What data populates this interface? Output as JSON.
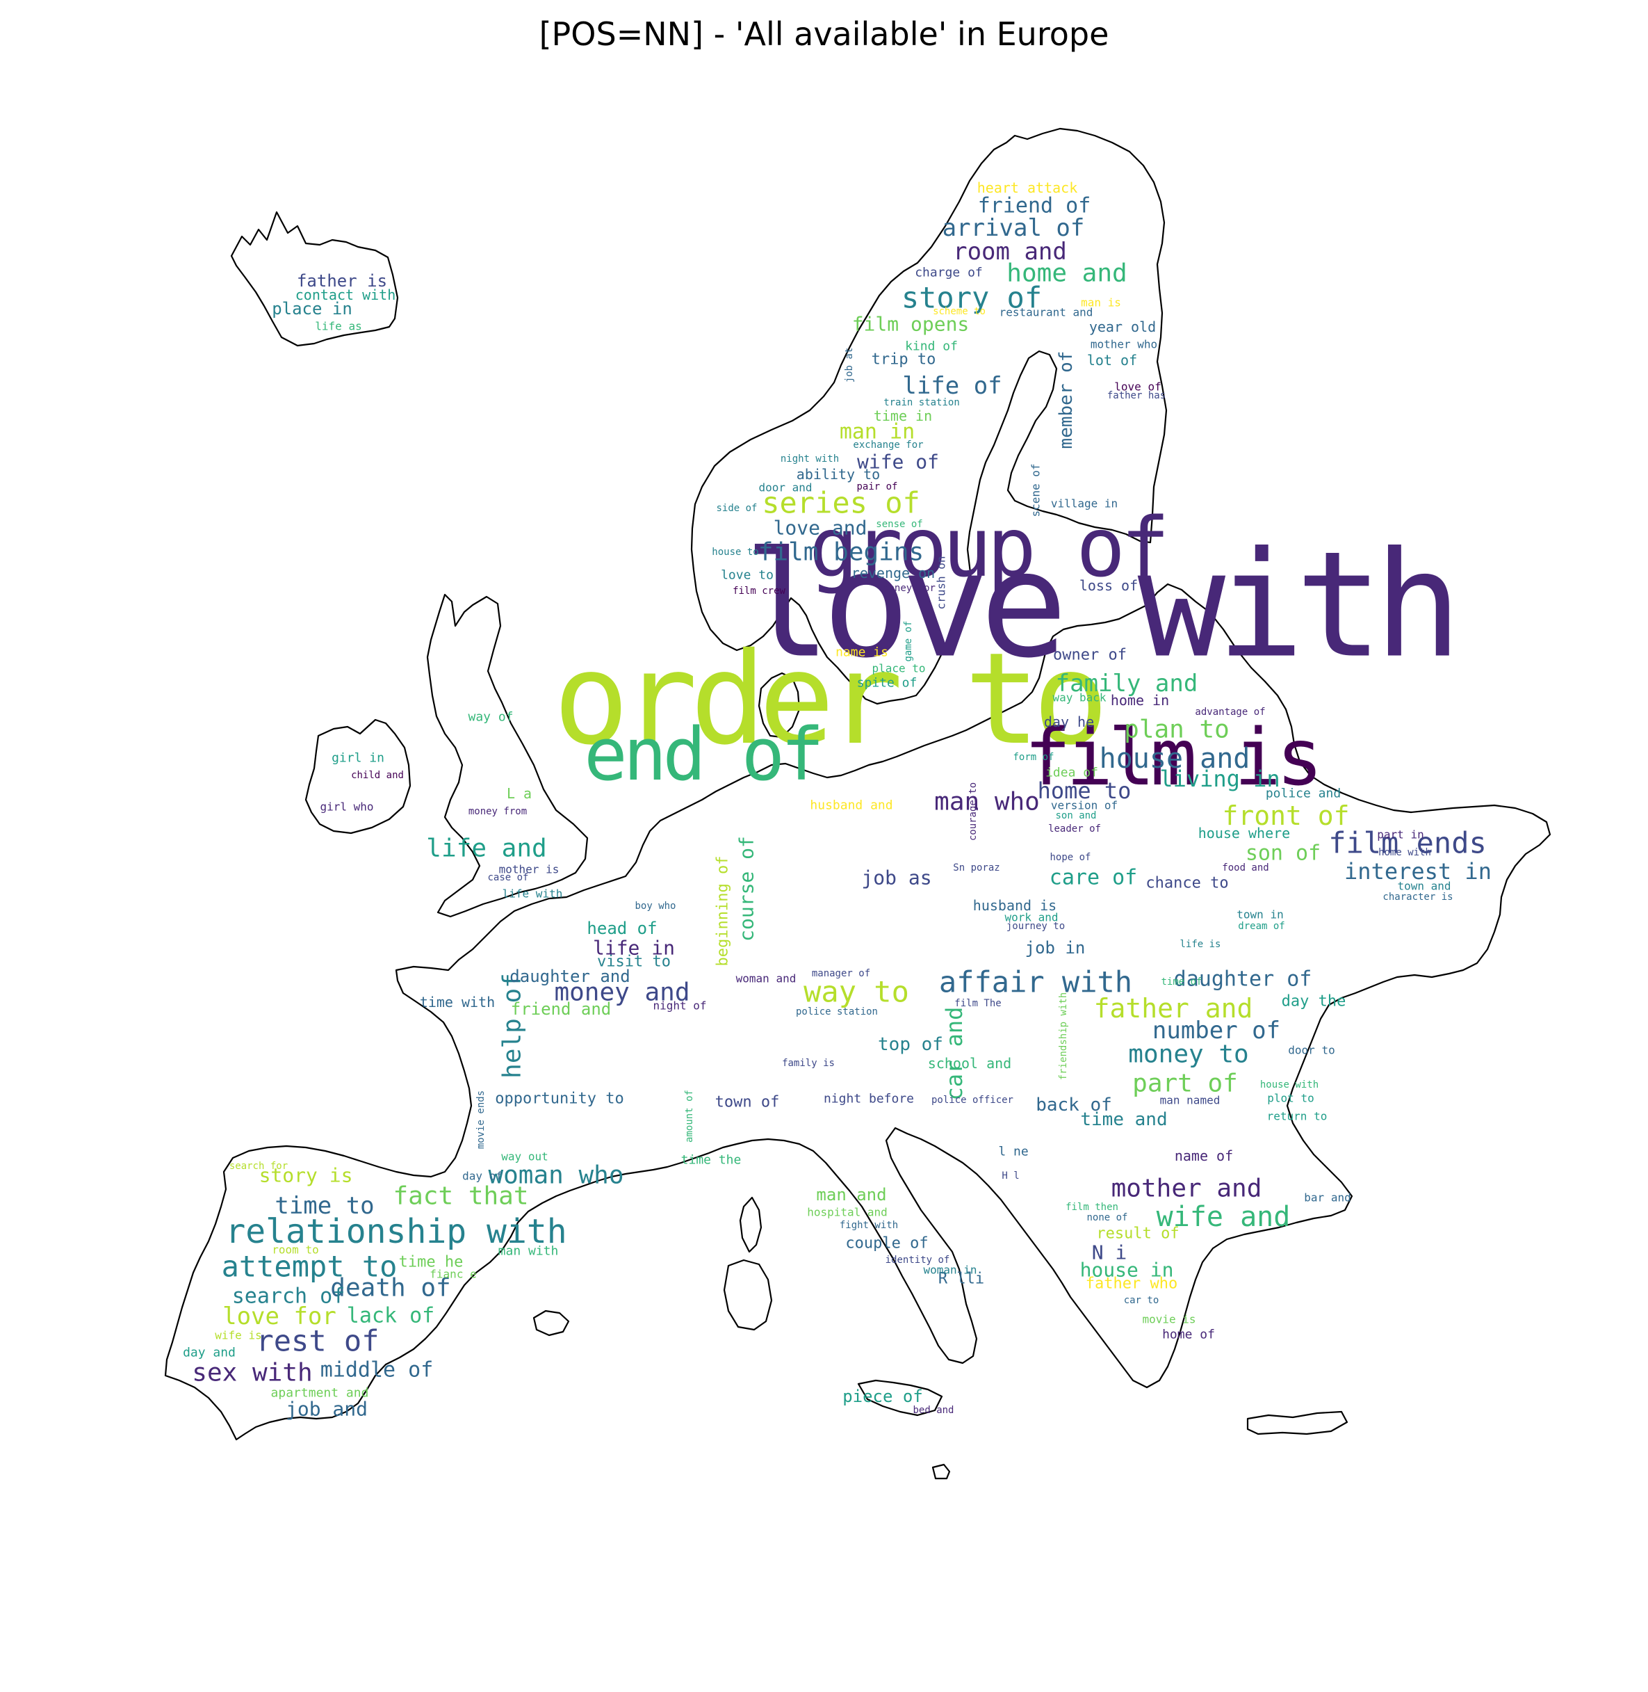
{
  "title": "[POS=NN] - 'All available' in Europe",
  "palette": [
    "#440154",
    "#482878",
    "#3e4989",
    "#31688e",
    "#26828e",
    "#1f9e89",
    "#35b779",
    "#6ece58",
    "#b5de2b",
    "#fde725"
  ],
  "words": [
    [
      "love with",
      1580,
      870,
      210,
      1,
      "l"
    ],
    [
      "order to",
      1190,
      1005,
      182,
      8,
      "l"
    ],
    [
      "group of",
      1420,
      787,
      118,
      1,
      "l"
    ],
    [
      "film is",
      1685,
      1090,
      112,
      0,
      "l"
    ],
    [
      "end of",
      1010,
      1085,
      104,
      6,
      "l"
    ],
    [
      "relationship with",
      570,
      1771,
      48,
      4
    ],
    [
      "affair with",
      1490,
      1412,
      42,
      3
    ],
    [
      "series of",
      1210,
      723,
      42,
      8
    ],
    [
      "film ends",
      2025,
      1212,
      42,
      2
    ],
    [
      "attempt to",
      445,
      1821,
      42,
      4
    ],
    [
      "way to",
      1232,
      1426,
      42,
      8
    ],
    [
      "house and",
      1690,
      1091,
      40,
      3
    ],
    [
      "rest of",
      457,
      1928,
      42,
      2
    ],
    [
      "story of",
      1398,
      428,
      42,
      4
    ],
    [
      "front of",
      1850,
      1173,
      38,
      8
    ],
    [
      "money and",
      895,
      1427,
      36,
      2
    ],
    [
      "life and",
      700,
      1220,
      36,
      5
    ],
    [
      "woman who",
      800,
      1690,
      36,
      4
    ],
    [
      "sex with",
      363,
      1974,
      36,
      1
    ],
    [
      "man who",
      1420,
      1153,
      36,
      1
    ],
    [
      "wife and",
      1760,
      1750,
      40,
      6
    ],
    [
      "fact that",
      663,
      1720,
      36,
      7
    ],
    [
      "film begins",
      1210,
      794,
      36,
      3
    ],
    [
      "plan to",
      1693,
      1049,
      36,
      7
    ],
    [
      "father and",
      1688,
      1450,
      38,
      8
    ],
    [
      "mother and",
      1707,
      1709,
      36,
      1
    ],
    [
      "death of",
      562,
      1852,
      36,
      3
    ],
    [
      "family and",
      1621,
      983,
      34,
      6
    ],
    [
      "room and",
      1453,
      362,
      34,
      1
    ],
    [
      "home and",
      1535,
      393,
      36,
      6
    ],
    [
      "number of",
      1750,
      1482,
      34,
      3
    ],
    [
      "money to",
      1710,
      1516,
      36,
      4
    ],
    [
      "part of",
      1705,
      1558,
      36,
      7
    ],
    [
      "living in",
      1755,
      1120,
      32,
      5
    ],
    [
      "interest in",
      2040,
      1253,
      32,
      3
    ],
    [
      "daughter of",
      1788,
      1408,
      30,
      3
    ],
    [
      "home to",
      1560,
      1137,
      32,
      2
    ],
    [
      "arrival of",
      1458,
      328,
      34,
      3
    ],
    [
      "friend of",
      1488,
      296,
      30,
      3
    ],
    [
      "life of",
      1370,
      555,
      34,
      3
    ],
    [
      "life in",
      912,
      1363,
      28,
      1
    ],
    [
      "time to",
      467,
      1734,
      34,
      3
    ],
    [
      "love for",
      402,
      1893,
      34,
      8
    ],
    [
      "job and",
      470,
      2026,
      28,
      3
    ],
    [
      "middle of",
      542,
      1970,
      30,
      3
    ],
    [
      "search of",
      415,
      1864,
      30,
      4
    ],
    [
      "lack of",
      562,
      1892,
      30,
      6
    ],
    [
      "care of",
      1573,
      1262,
      30,
      5
    ],
    [
      "son of",
      1846,
      1227,
      30,
      7
    ],
    [
      "head of",
      895,
      1335,
      24,
      5
    ],
    [
      "course of",
      1074,
      1278,
      28,
      6,
      "v"
    ],
    [
      "help of",
      737,
      1475,
      36,
      4,
      "v"
    ],
    [
      "car and",
      1373,
      1515,
      32,
      6,
      "v"
    ],
    [
      "beginning of",
      1040,
      1310,
      22,
      8,
      "v"
    ],
    [
      "member of",
      1534,
      575,
      26,
      3,
      "v"
    ],
    [
      "job as",
      1290,
      1262,
      28,
      2
    ],
    [
      "man in",
      1262,
      621,
      30,
      8
    ],
    [
      "wife of",
      1292,
      664,
      28,
      2
    ],
    [
      "love and",
      1180,
      759,
      28,
      3
    ],
    [
      "film opens",
      1310,
      466,
      28,
      7
    ],
    [
      "back of",
      1545,
      1589,
      26,
      3
    ],
    [
      "time and",
      1617,
      1610,
      26,
      4
    ],
    [
      "top of",
      1310,
      1502,
      26,
      4
    ],
    [
      "friend and",
      807,
      1451,
      24,
      7
    ],
    [
      "daughter and",
      820,
      1404,
      24,
      3
    ],
    [
      "opportunity to",
      805,
      1580,
      22,
      3
    ],
    [
      "town of",
      1075,
      1585,
      22,
      2
    ],
    [
      "visit to",
      912,
      1383,
      22,
      4
    ],
    [
      "story is",
      440,
      1690,
      28,
      8
    ],
    [
      "man and",
      1225,
      1718,
      24,
      7
    ],
    [
      "couple of",
      1276,
      1788,
      22,
      3
    ],
    [
      "N i",
      1596,
      1801,
      28,
      2
    ],
    [
      "house in",
      1621,
      1826,
      28,
      6
    ],
    [
      "father who",
      1628,
      1846,
      22,
      9
    ],
    [
      "result of",
      1637,
      1774,
      22,
      8
    ],
    [
      "piece of",
      1270,
      2008,
      24,
      5
    ],
    [
      "R lli",
      1383,
      1839,
      22,
      3
    ],
    [
      "time with",
      658,
      1441,
      20,
      3
    ],
    [
      "school and",
      1395,
      1529,
      20,
      6
    ],
    [
      "job in",
      1518,
      1363,
      24,
      3
    ],
    [
      "husband is",
      1460,
      1302,
      20,
      3
    ],
    [
      "chance to",
      1708,
      1270,
      22,
      2
    ],
    [
      "house where",
      1790,
      1198,
      20,
      5
    ],
    [
      "police and",
      1875,
      1141,
      18,
      4
    ],
    [
      "day the",
      1890,
      1440,
      22,
      5
    ],
    [
      "idea of",
      1542,
      1111,
      18,
      7
    ],
    [
      "owner of",
      1568,
      942,
      22,
      2
    ],
    [
      "day he",
      1538,
      1038,
      20,
      2
    ],
    [
      "home in",
      1640,
      1007,
      20,
      1
    ],
    [
      "loss of",
      1595,
      842,
      20,
      2
    ],
    [
      "name of",
      1732,
      1662,
      20,
      1
    ],
    [
      "way of",
      706,
      1031,
      18,
      6
    ],
    [
      "girl in",
      515,
      1090,
      18,
      5
    ],
    [
      "child and",
      543,
      1115,
      14,
      0
    ],
    [
      "girl who",
      499,
      1160,
      16,
      1
    ],
    [
      "L a",
      747,
      1141,
      20,
      7
    ],
    [
      "money from",
      716,
      1167,
      14,
      1
    ],
    [
      "mother is",
      761,
      1250,
      16,
      2
    ],
    [
      "life with",
      766,
      1285,
      16,
      4
    ],
    [
      "father is",
      492,
      404,
      24,
      2
    ],
    [
      "contact with",
      497,
      424,
      20,
      5
    ],
    [
      "place in",
      449,
      444,
      24,
      4
    ],
    [
      "life as",
      487,
      469,
      16,
      6
    ],
    [
      "heart attack",
      1478,
      270,
      20,
      9
    ],
    [
      "charge of",
      1365,
      392,
      18,
      2
    ],
    [
      "man is",
      1584,
      435,
      16,
      9
    ],
    [
      "scheme to",
      1380,
      448,
      14,
      9
    ],
    [
      "restaurant and",
      1505,
      449,
      16,
      3
    ],
    [
      "year old",
      1615,
      470,
      20,
      3
    ],
    [
      "kind of",
      1340,
      498,
      18,
      6
    ],
    [
      "mother who",
      1617,
      495,
      16,
      3
    ],
    [
      "trip to",
      1300,
      517,
      22,
      3
    ],
    [
      "lot of",
      1600,
      518,
      20,
      4
    ],
    [
      "love of",
      1637,
      556,
      16,
      0
    ],
    [
      "father has",
      1635,
      569,
      14,
      2
    ],
    [
      "train station",
      1326,
      579,
      14,
      4
    ],
    [
      "time in",
      1299,
      598,
      20,
      7
    ],
    [
      "exchange for",
      1278,
      640,
      14,
      4
    ],
    [
      "night with",
      1165,
      660,
      14,
      4
    ],
    [
      "ability to",
      1206,
      682,
      20,
      3
    ],
    [
      "door and",
      1130,
      701,
      16,
      4
    ],
    [
      "pair of",
      1262,
      700,
      14,
      0
    ],
    [
      "side of",
      1060,
      731,
      14,
      4
    ],
    [
      "sense of",
      1294,
      754,
      14,
      6
    ],
    [
      "house to",
      1058,
      794,
      14,
      4
    ],
    [
      "revenge on",
      1285,
      824,
      20,
      3
    ],
    [
      "love to",
      1075,
      827,
      18,
      4
    ],
    [
      "film crew",
      1092,
      850,
      14,
      0
    ],
    [
      "money for",
      1308,
      846,
      14,
      1
    ],
    [
      "name is",
      1240,
      938,
      18,
      9
    ],
    [
      "place to",
      1293,
      961,
      16,
      6
    ],
    [
      "spite of",
      1276,
      982,
      18,
      5
    ],
    [
      "way back",
      1553,
      1003,
      16,
      6
    ],
    [
      "advantage of",
      1770,
      1024,
      14,
      1
    ],
    [
      "form of",
      1487,
      1089,
      14,
      5
    ],
    [
      "husband and",
      1225,
      1158,
      18,
      9
    ],
    [
      "version of",
      1560,
      1158,
      16,
      3
    ],
    [
      "son and",
      1548,
      1173,
      14,
      5
    ],
    [
      "leader of",
      1546,
      1192,
      14,
      1
    ],
    [
      "hope of",
      1540,
      1233,
      14,
      2
    ],
    [
      "Sn poraz",
      1405,
      1248,
      14,
      2
    ],
    [
      "food and",
      1792,
      1248,
      14,
      1
    ],
    [
      "part in",
      2015,
      1200,
      16,
      1
    ],
    [
      "home with",
      2021,
      1226,
      14,
      2
    ],
    [
      "town and",
      2049,
      1274,
      16,
      4
    ],
    [
      "character is",
      2040,
      1290,
      14,
      3
    ],
    [
      "work and",
      1484,
      1319,
      16,
      5
    ],
    [
      "journey to",
      1490,
      1332,
      14,
      2
    ],
    [
      "town in",
      1813,
      1315,
      16,
      4
    ],
    [
      "dream of",
      1815,
      1332,
      14,
      5
    ],
    [
      "life is",
      1727,
      1358,
      14,
      4
    ],
    [
      "boy who",
      943,
      1303,
      14,
      3
    ],
    [
      "case of",
      731,
      1262,
      14,
      2
    ],
    [
      "manager of",
      1210,
      1400,
      14,
      2
    ],
    [
      "woman and",
      1102,
      1407,
      16,
      1
    ],
    [
      "time of",
      1700,
      1412,
      14,
      6
    ],
    [
      "night of",
      978,
      1446,
      16,
      1
    ],
    [
      "film The",
      1407,
      1443,
      14,
      2
    ],
    [
      "police station",
      1204,
      1455,
      14,
      3
    ],
    [
      "family is",
      1163,
      1529,
      14,
      2
    ],
    [
      "door to",
      1887,
      1510,
      16,
      3
    ],
    [
      "house with",
      1855,
      1560,
      14,
      6
    ],
    [
      "plot to",
      1857,
      1579,
      16,
      5
    ],
    [
      "police officer",
      1399,
      1582,
      14,
      2
    ],
    [
      "night before",
      1250,
      1580,
      18,
      2
    ],
    [
      "man named",
      1712,
      1582,
      16,
      2
    ],
    [
      "return to",
      1866,
      1605,
      16,
      5
    ],
    [
      "l ne",
      1458,
      1656,
      18,
      3
    ],
    [
      "H l",
      1454,
      1691,
      14,
      2
    ],
    [
      "way out",
      755,
      1663,
      16,
      6
    ],
    [
      "time the",
      1023,
      1668,
      18,
      6
    ],
    [
      "day of",
      694,
      1691,
      16,
      3
    ],
    [
      "search for",
      372,
      1677,
      14,
      8
    ],
    [
      "hospital and",
      1219,
      1743,
      16,
      7
    ],
    [
      "fight with",
      1250,
      1762,
      14,
      3
    ],
    [
      "film then",
      1571,
      1736,
      14,
      6
    ],
    [
      "none of",
      1593,
      1751,
      14,
      3
    ],
    [
      "bar and",
      1910,
      1722,
      16,
      3
    ],
    [
      "room to",
      425,
      1797,
      16,
      8
    ],
    [
      "man with",
      760,
      1799,
      18,
      6
    ],
    [
      "time he",
      620,
      1815,
      22,
      7
    ],
    [
      "fianc e",
      652,
      1832,
      16,
      7
    ],
    [
      "identity of",
      1320,
      1812,
      14,
      2
    ],
    [
      "woman in",
      1367,
      1826,
      16,
      4
    ],
    [
      "car to",
      1642,
      1870,
      14,
      3
    ],
    [
      "movie is",
      1682,
      1897,
      16,
      7
    ],
    [
      "home of",
      1710,
      1919,
      18,
      1
    ],
    [
      "wife is",
      343,
      1920,
      16,
      8
    ],
    [
      "day and",
      301,
      1945,
      18,
      5
    ],
    [
      "apartment and",
      460,
      2003,
      18,
      7
    ],
    [
      "bed and",
      1343,
      2028,
      14,
      1
    ],
    [
      "crush on",
      1354,
      838,
      16,
      2,
      "v"
    ],
    [
      "game of",
      1307,
      922,
      14,
      5,
      "v"
    ],
    [
      "job at",
      1222,
      525,
      14,
      3,
      "v"
    ],
    [
      "scene of",
      1490,
      705,
      16,
      3,
      "v"
    ],
    [
      "village in",
      1560,
      724,
      16,
      3
    ],
    [
      "courage to",
      1400,
      1167,
      14,
      1,
      "v"
    ],
    [
      "friendship with",
      1530,
      1490,
      14,
      7,
      "v"
    ],
    [
      "movie ends",
      692,
      1610,
      14,
      3,
      "v"
    ],
    [
      "amount of",
      992,
      1605,
      14,
      6,
      "v"
    ]
  ]
}
